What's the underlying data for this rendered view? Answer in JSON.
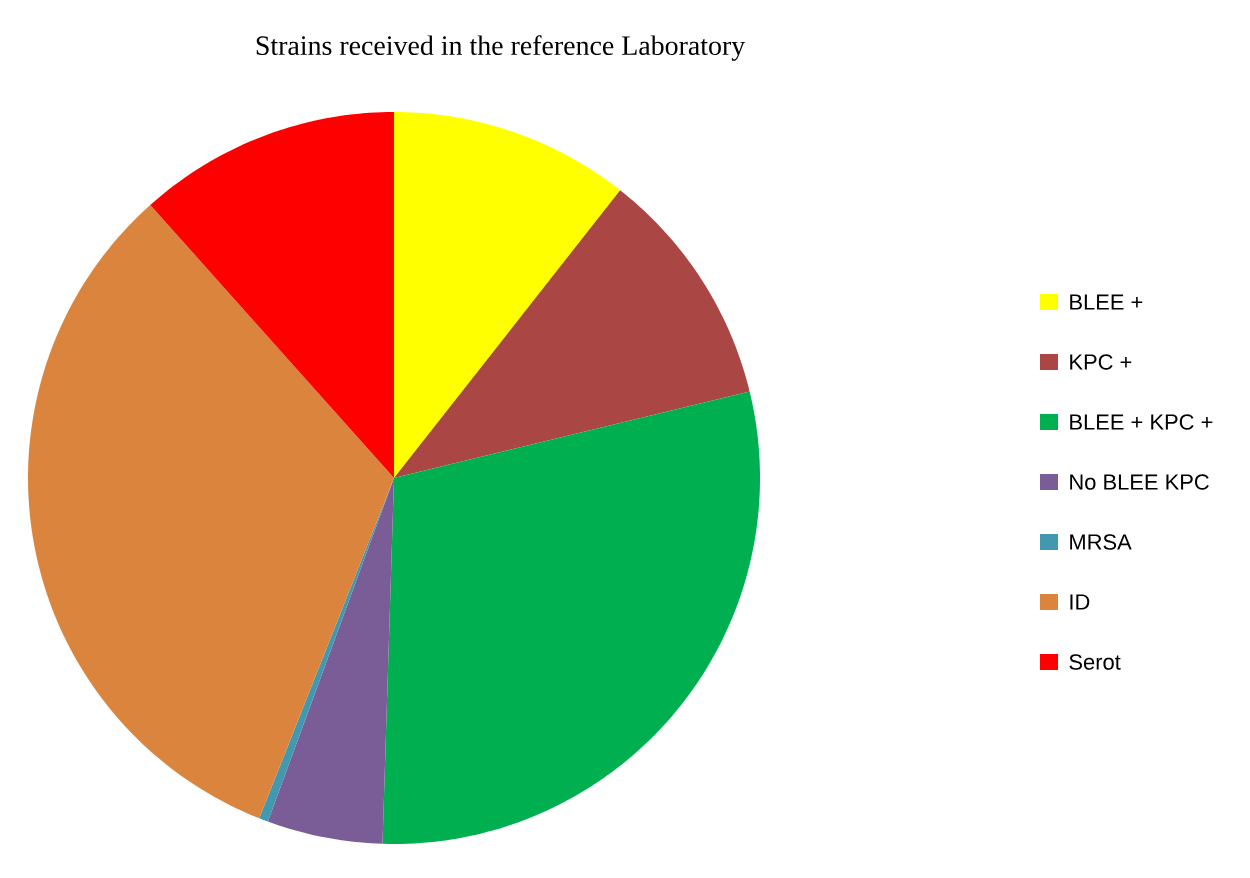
{
  "chart_data": {
    "type": "pie",
    "title": "Strains received in the reference Laboratory",
    "categories": [
      "BLEE +",
      "KPC +",
      "BLEE + KPC +",
      "No BLEE KPC",
      "MRSA",
      "ID",
      "Serot"
    ],
    "values": [
      10.6,
      10.6,
      29.3,
      5.1,
      0.4,
      32.4,
      11.6
    ],
    "colors": [
      "#ffff00",
      "#aa4643",
      "#00b050",
      "#7a5c96",
      "#4198af",
      "#db843d",
      "#ff0000"
    ],
    "legend": "right"
  }
}
